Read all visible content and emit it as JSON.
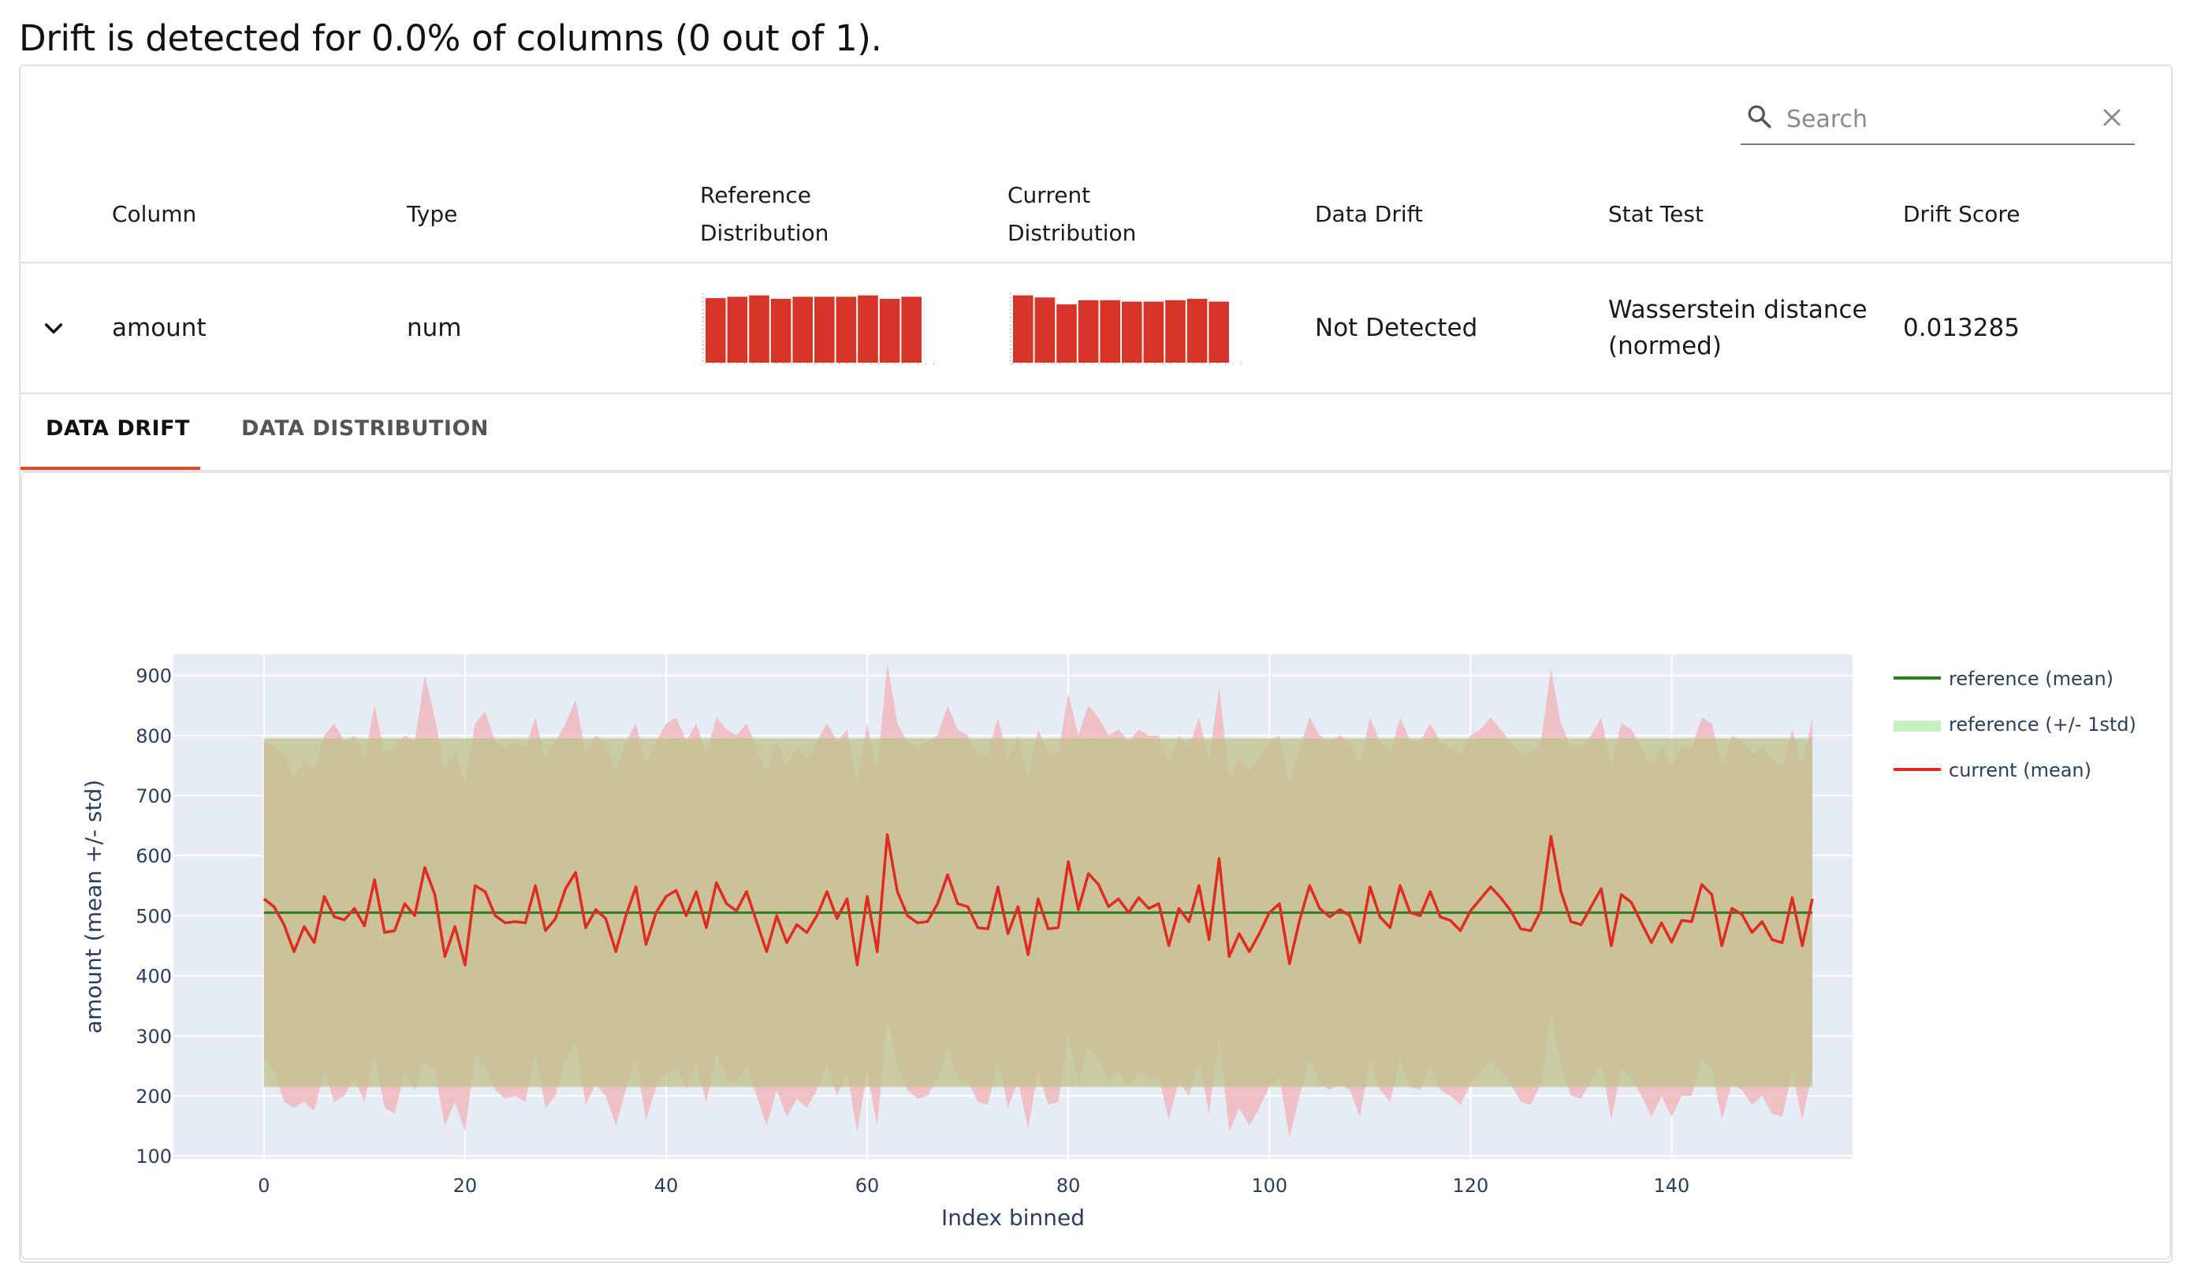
{
  "headline": "Drift is detected for 0.0% of columns (0 out of 1).",
  "search": {
    "placeholder": "Search"
  },
  "table": {
    "headers": {
      "column": "Column",
      "type": "Type",
      "ref_line1": "Reference",
      "ref_line2": "Distribution",
      "cur_line1": "Current",
      "cur_line2": "Distribution",
      "data_drift": "Data Drift",
      "stat_test": "Stat Test",
      "drift_score": "Drift Score"
    },
    "row": {
      "column": "amount",
      "type": "num",
      "data_drift": "Not Detected",
      "stat_test_line1": "Wasserstein distance",
      "stat_test_line2": "(normed)",
      "drift_score": "0.013285",
      "reference_hist": [
        0.93,
        0.95,
        0.97,
        0.92,
        0.95,
        0.95,
        0.95,
        0.97,
        0.92,
        0.95
      ],
      "current_hist": [
        0.97,
        0.94,
        0.84,
        0.9,
        0.9,
        0.88,
        0.88,
        0.9,
        0.92,
        0.88
      ]
    }
  },
  "tabs": {
    "data_drift": "DATA DRIFT",
    "data_distribution": "DATA DISTRIBUTION"
  },
  "colors": {
    "ref_mean": "#2e7d1e",
    "ref_band": "#c8efc0",
    "current": "#e12a20",
    "current_band": "#f1b8bd",
    "plot_bg": "#e5ecf6",
    "hist_bar": "#d8352a"
  },
  "chart_data": {
    "type": "line",
    "xlabel": "Index binned",
    "ylabel": "amount (mean +/- std)",
    "xlim": [
      -9,
      158
    ],
    "ylim": [
      95,
      935
    ],
    "x_ticks": [
      0,
      20,
      40,
      60,
      80,
      100,
      120,
      140
    ],
    "y_ticks": [
      100,
      200,
      300,
      400,
      500,
      600,
      700,
      800,
      900
    ],
    "legend": [
      "reference (mean)",
      "reference (+/- 1std)",
      "current (mean)"
    ],
    "legend_position": "right",
    "reference": {
      "mean": 505,
      "lower": 215,
      "upper": 795
    },
    "current_mean": [
      528,
      515,
      485,
      440,
      482,
      455,
      532,
      498,
      493,
      512,
      483,
      560,
      472,
      475,
      520,
      500,
      580,
      535,
      432,
      482,
      418,
      550,
      540,
      500,
      488,
      490,
      488,
      550,
      475,
      495,
      545,
      572,
      480,
      510,
      495,
      440,
      500,
      548,
      452,
      505,
      532,
      542,
      500,
      540,
      480,
      555,
      520,
      508,
      540,
      490,
      440,
      500,
      455,
      485,
      472,
      500,
      540,
      495,
      528,
      418,
      532,
      440,
      635,
      540,
      500,
      488,
      490,
      520,
      568,
      520,
      515,
      480,
      478,
      548,
      470,
      515,
      435,
      528,
      478,
      480,
      590,
      510,
      570,
      552,
      515,
      528,
      505,
      530,
      512,
      520,
      450,
      512,
      490,
      550,
      460,
      595,
      432,
      470,
      440,
      470,
      505,
      520,
      420,
      492,
      550,
      512,
      498,
      510,
      500,
      455,
      548,
      498,
      480,
      550,
      505,
      500,
      540,
      498,
      492,
      475,
      508,
      528,
      548,
      530,
      508,
      478,
      475,
      508,
      632,
      540,
      490,
      485,
      515,
      545,
      450,
      535,
      522,
      488,
      455,
      488,
      456,
      492,
      490,
      552,
      535,
      450,
      512,
      502,
      472,
      490,
      460,
      455,
      530,
      450,
      528
    ],
    "current_upper": [
      790,
      780,
      770,
      730,
      760,
      740,
      800,
      820,
      790,
      800,
      760,
      850,
      770,
      780,
      800,
      790,
      900,
      830,
      740,
      770,
      720,
      820,
      840,
      790,
      780,
      790,
      780,
      830,
      760,
      790,
      820,
      860,
      770,
      800,
      790,
      740,
      790,
      820,
      750,
      790,
      820,
      830,
      790,
      820,
      770,
      830,
      810,
      800,
      820,
      780,
      740,
      790,
      750,
      780,
      760,
      790,
      820,
      790,
      810,
      720,
      820,
      740,
      920,
      820,
      790,
      780,
      790,
      800,
      850,
      810,
      800,
      770,
      770,
      830,
      760,
      800,
      730,
      810,
      770,
      770,
      870,
      800,
      850,
      830,
      800,
      810,
      790,
      810,
      800,
      800,
      750,
      800,
      780,
      830,
      760,
      880,
      730,
      760,
      740,
      760,
      790,
      800,
      720,
      780,
      830,
      800,
      790,
      800,
      790,
      750,
      830,
      790,
      770,
      830,
      790,
      790,
      820,
      790,
      780,
      770,
      800,
      810,
      830,
      810,
      790,
      770,
      770,
      790,
      910,
      820,
      780,
      780,
      800,
      830,
      750,
      820,
      810,
      780,
      750,
      780,
      750,
      780,
      780,
      830,
      820,
      750,
      800,
      790,
      770,
      780,
      760,
      750,
      810,
      750,
      830
    ],
    "current_lower": [
      260,
      240,
      190,
      180,
      190,
      175,
      240,
      190,
      200,
      230,
      190,
      270,
      180,
      170,
      240,
      210,
      260,
      240,
      150,
      190,
      140,
      270,
      250,
      210,
      195,
      200,
      190,
      270,
      180,
      200,
      260,
      290,
      185,
      220,
      200,
      150,
      210,
      260,
      160,
      215,
      240,
      250,
      210,
      250,
      190,
      270,
      230,
      220,
      250,
      200,
      150,
      210,
      165,
      195,
      180,
      210,
      250,
      200,
      240,
      140,
      240,
      150,
      330,
      250,
      210,
      195,
      200,
      230,
      280,
      230,
      225,
      190,
      185,
      260,
      180,
      225,
      145,
      240,
      185,
      190,
      300,
      220,
      280,
      260,
      225,
      240,
      215,
      240,
      225,
      230,
      160,
      225,
      200,
      260,
      170,
      300,
      140,
      180,
      150,
      180,
      215,
      230,
      130,
      200,
      260,
      220,
      210,
      220,
      210,
      165,
      260,
      210,
      190,
      260,
      215,
      210,
      250,
      210,
      200,
      185,
      220,
      240,
      260,
      240,
      220,
      190,
      185,
      220,
      340,
      250,
      200,
      195,
      225,
      255,
      160,
      245,
      230,
      200,
      165,
      200,
      165,
      200,
      200,
      260,
      245,
      160,
      220,
      210,
      185,
      200,
      170,
      165,
      240,
      160,
      240
    ]
  }
}
